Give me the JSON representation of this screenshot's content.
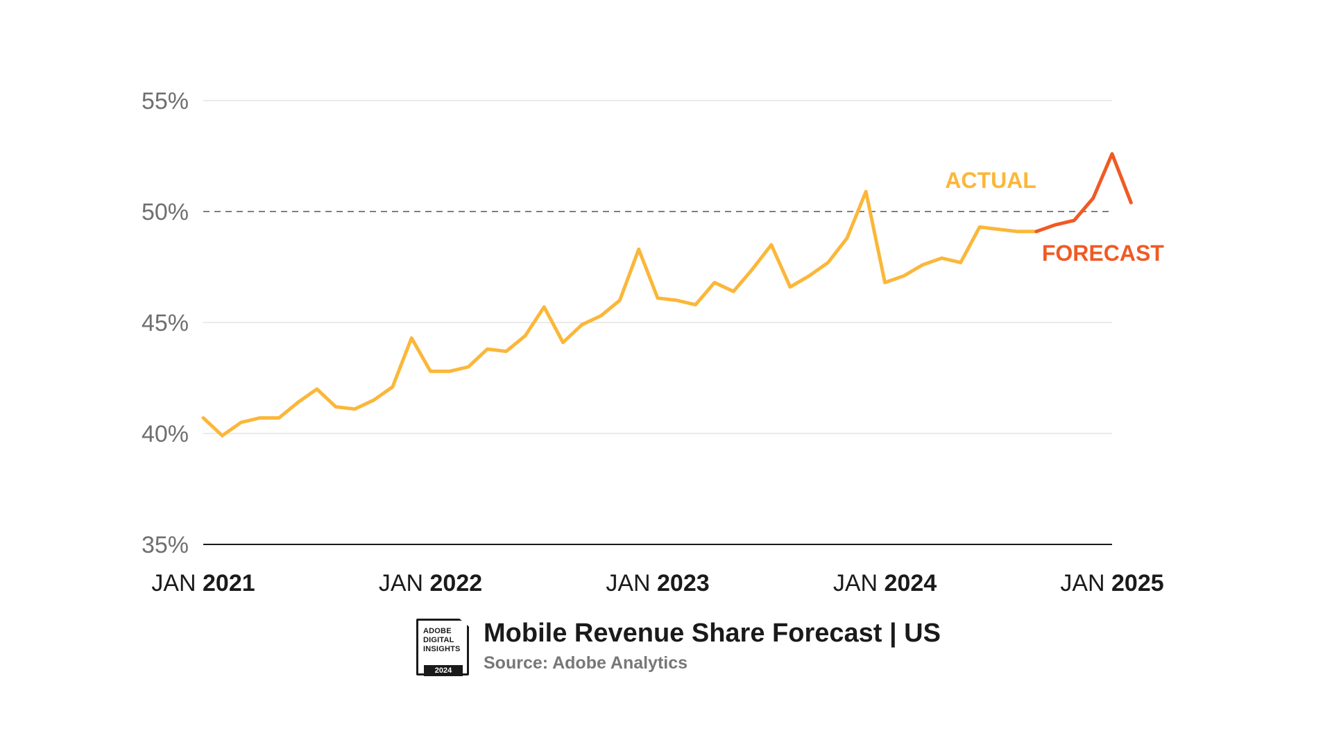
{
  "chart_data": {
    "type": "line",
    "title": "Mobile Revenue Share Forecast | US",
    "source": "Source: Adobe Analytics",
    "ylim": [
      35,
      55
    ],
    "yticks": [
      {
        "value": 55,
        "label": "55%"
      },
      {
        "value": 50,
        "label": "50%"
      },
      {
        "value": 45,
        "label": "45%"
      },
      {
        "value": 40,
        "label": "40%"
      },
      {
        "value": 35,
        "label": "35%"
      }
    ],
    "xticks": [
      {
        "value": "2021-01",
        "prefix": "JAN",
        "year": "2021"
      },
      {
        "value": "2022-01",
        "prefix": "JAN",
        "year": "2022"
      },
      {
        "value": "2023-01",
        "prefix": "JAN",
        "year": "2023"
      },
      {
        "value": "2024-01",
        "prefix": "JAN",
        "year": "2024"
      },
      {
        "value": "2025-01",
        "prefix": "JAN",
        "year": "2025"
      }
    ],
    "reference_line": {
      "y": 50,
      "style": "dashed"
    },
    "grid": true,
    "series": [
      {
        "name": "ACTUAL",
        "color": "#FBB73A",
        "x": [
          "2021-01",
          "2021-02",
          "2021-03",
          "2021-04",
          "2021-05",
          "2021-06",
          "2021-07",
          "2021-08",
          "2021-09",
          "2021-10",
          "2021-11",
          "2021-12",
          "2022-01",
          "2022-02",
          "2022-03",
          "2022-04",
          "2022-05",
          "2022-06",
          "2022-07",
          "2022-08",
          "2022-09",
          "2022-10",
          "2022-11",
          "2022-12",
          "2023-01",
          "2023-02",
          "2023-03",
          "2023-04",
          "2023-05",
          "2023-06",
          "2023-07",
          "2023-08",
          "2023-09",
          "2023-10",
          "2023-11",
          "2023-12",
          "2024-01",
          "2024-02",
          "2024-03",
          "2024-04",
          "2024-05",
          "2024-06",
          "2024-07",
          "2024-08",
          "2024-09"
        ],
        "values": [
          40.7,
          39.9,
          40.5,
          40.7,
          40.7,
          41.4,
          42.0,
          41.2,
          41.1,
          41.5,
          42.1,
          44.3,
          42.8,
          42.8,
          43.0,
          43.8,
          43.7,
          44.4,
          45.7,
          44.1,
          44.9,
          45.3,
          46.0,
          48.3,
          46.1,
          46.0,
          45.8,
          46.8,
          46.4,
          47.4,
          48.5,
          46.6,
          47.1,
          47.7,
          48.8,
          50.9,
          46.8,
          47.1,
          47.6,
          47.9,
          47.7,
          49.3,
          49.2,
          49.1,
          49.1
        ]
      },
      {
        "name": "FORECAST",
        "color": "#F05A24",
        "x": [
          "2024-09",
          "2024-10",
          "2024-11",
          "2024-12",
          "2025-01",
          "2025-02"
        ],
        "values": [
          49.1,
          49.4,
          49.6,
          50.6,
          52.6,
          50.4
        ]
      }
    ]
  },
  "badge": {
    "line1": "ADOBE",
    "line2": "DIGITAL",
    "line3": "INSIGHTS",
    "year": "2024"
  }
}
